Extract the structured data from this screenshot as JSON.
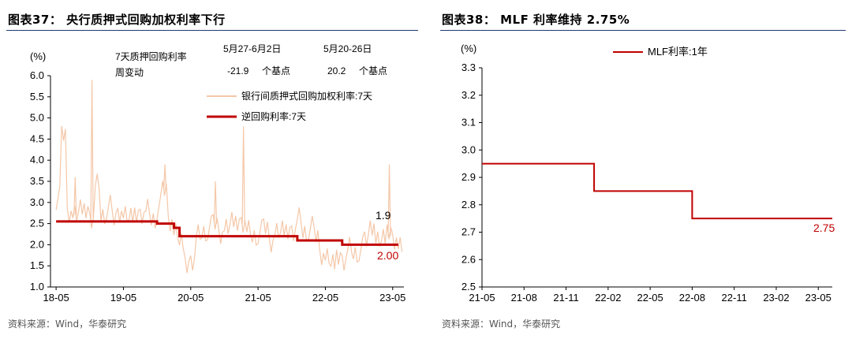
{
  "left_panel": {
    "title": "图表37： 央行质押式回购加权利率下行",
    "source": "资料来源：Wind，华泰研究",
    "unit": "(%)",
    "table": {
      "row_label_line1": "7天质押回购利率",
      "row_label_line2": "周变动",
      "col1_header": "5月27-6月2日",
      "col2_header": "5月20-26日",
      "col1_value": "-21.9",
      "col1_unit": "个基点",
      "col2_value": "20.2",
      "col2_unit": "个基点"
    }
  },
  "right_panel": {
    "title": "图表38： MLF 利率维持 2.75%",
    "source": "资料来源：Wind，华泰研究",
    "unit": "(%)"
  },
  "chart_data": [
    {
      "type": "line",
      "title": "",
      "ylabel": "(%)",
      "ylim": [
        1.0,
        6.0
      ],
      "yticks": [
        "1.0",
        "1.5",
        "2.0",
        "2.5",
        "3.0",
        "3.5",
        "4.0",
        "4.5",
        "5.0",
        "5.5",
        "6.0"
      ],
      "x_ticks": [
        "18-05",
        "19-05",
        "20-05",
        "21-05",
        "22-05",
        "23-05"
      ],
      "legend": "top-right",
      "series": [
        {
          "name": "银行间质押式回购加权利率:7天",
          "color": "#f4c7a8",
          "x": [
            "2018-05",
            "2018-06",
            "2018-07",
            "2018-08",
            "2018-09",
            "2018-10",
            "2018-11",
            "2018-12",
            "2019-01",
            "2019-02",
            "2019-03",
            "2019-04",
            "2019-05",
            "2019-06",
            "2019-07",
            "2019-08",
            "2019-09",
            "2019-10",
            "2019-11",
            "2019-12",
            "2020-01",
            "2020-02",
            "2020-03",
            "2020-04",
            "2020-05",
            "2020-06",
            "2020-07",
            "2020-08",
            "2020-09",
            "2020-10",
            "2020-11",
            "2020-12",
            "2021-01",
            "2021-02",
            "2021-03",
            "2021-04",
            "2021-05",
            "2021-06",
            "2021-07",
            "2021-08",
            "2021-09",
            "2021-10",
            "2021-11",
            "2021-12",
            "2022-01",
            "2022-02",
            "2022-03",
            "2022-04",
            "2022-05",
            "2022-06",
            "2022-07",
            "2022-08",
            "2022-09",
            "2022-10",
            "2022-11",
            "2022-12",
            "2023-01",
            "2023-02",
            "2023-03",
            "2023-04",
            "2023-05",
            "2023-06"
          ],
          "values": [
            3.1,
            4.6,
            2.8,
            2.7,
            3.0,
            2.7,
            2.6,
            3.4,
            2.7,
            2.9,
            2.6,
            2.8,
            2.7,
            2.8,
            2.6,
            2.7,
            2.8,
            2.6,
            2.9,
            3.3,
            2.6,
            2.3,
            2.2,
            1.4,
            1.6,
            2.2,
            2.3,
            2.4,
            2.5,
            2.3,
            2.4,
            2.7,
            2.4,
            2.5,
            2.3,
            2.2,
            2.3,
            2.4,
            2.1,
            2.3,
            2.5,
            2.2,
            2.3,
            2.6,
            2.3,
            2.4,
            2.2,
            1.8,
            1.7,
            1.7,
            1.6,
            1.6,
            1.9,
            1.8,
            1.9,
            2.1,
            2.5,
            2.1,
            2.3,
            2.2,
            2.1,
            1.9
          ],
          "spikes": [
            {
              "x": "2018-11",
              "y": 5.9
            },
            {
              "x": "2021-02",
              "y": 4.8
            },
            {
              "x": "2019-12",
              "y": 3.9
            },
            {
              "x": "2023-04",
              "y": 3.9
            },
            {
              "x": "2018-08",
              "y": 3.6
            },
            {
              "x": "2020-09",
              "y": 3.5
            }
          ],
          "end_label": "1.9"
        },
        {
          "name": "逆回购利率:7天",
          "color": "#c00000",
          "x": [
            "2018-05",
            "2019-11",
            "2020-02",
            "2020-03",
            "2021-12",
            "2022-01",
            "2022-08",
            "2023-06"
          ],
          "values": [
            2.55,
            2.5,
            2.4,
            2.2,
            2.1,
            2.1,
            2.0,
            2.0
          ],
          "step": true,
          "end_label": "2.00"
        }
      ]
    },
    {
      "type": "line",
      "title": "",
      "ylabel": "(%)",
      "ylim": [
        2.5,
        3.3
      ],
      "yticks": [
        "2.5",
        "2.6",
        "2.7",
        "2.8",
        "2.9",
        "3.0",
        "3.1",
        "3.2",
        "3.3"
      ],
      "x_ticks": [
        "21-05",
        "21-08",
        "21-11",
        "22-02",
        "22-05",
        "22-08",
        "22-11",
        "23-02",
        "23-05"
      ],
      "legend": "top-center",
      "series": [
        {
          "name": "MLF利率:1年",
          "color": "#c00000",
          "step": true,
          "x": [
            "2021-05",
            "2022-01",
            "2022-08",
            "2023-06"
          ],
          "values": [
            2.95,
            2.85,
            2.75,
            2.75
          ],
          "end_label": "2.75"
        }
      ]
    }
  ]
}
